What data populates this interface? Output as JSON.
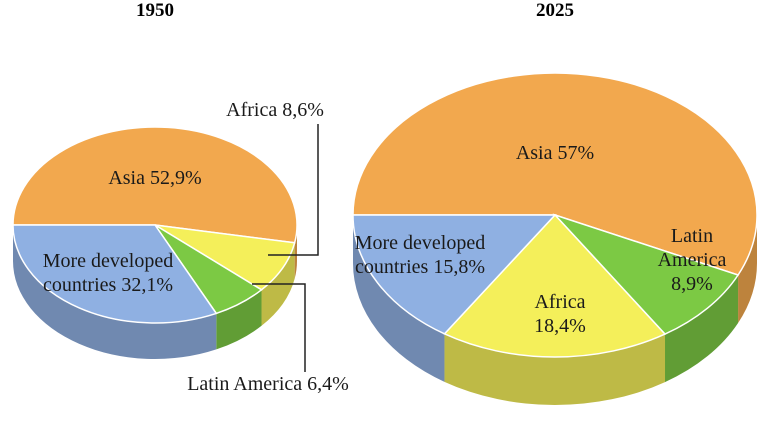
{
  "chart_data": [
    {
      "type": "pie3d",
      "title": "1950",
      "categories": [
        "Asia",
        "Africa",
        "Latin America",
        "More developed countries"
      ],
      "values": [
        52.9,
        8.6,
        6.4,
        32.1
      ],
      "value_labels": [
        "52,9%",
        "8,6%",
        "6,4%",
        "32,1%"
      ],
      "colors": [
        "#f2a84e",
        "#f4ef5a",
        "#7cc944",
        "#8fb0e2"
      ]
    },
    {
      "type": "pie3d",
      "title": "2025",
      "categories": [
        "Asia",
        "Latin America",
        "Africa",
        "More developed countries"
      ],
      "values": [
        57,
        8.9,
        18.4,
        15.8
      ],
      "value_labels": [
        "57%",
        "8,9%",
        "18,4%",
        "15,8%"
      ],
      "colors": [
        "#f2a84e",
        "#7cc944",
        "#f4ef5a",
        "#8fb0e2"
      ]
    }
  ]
}
